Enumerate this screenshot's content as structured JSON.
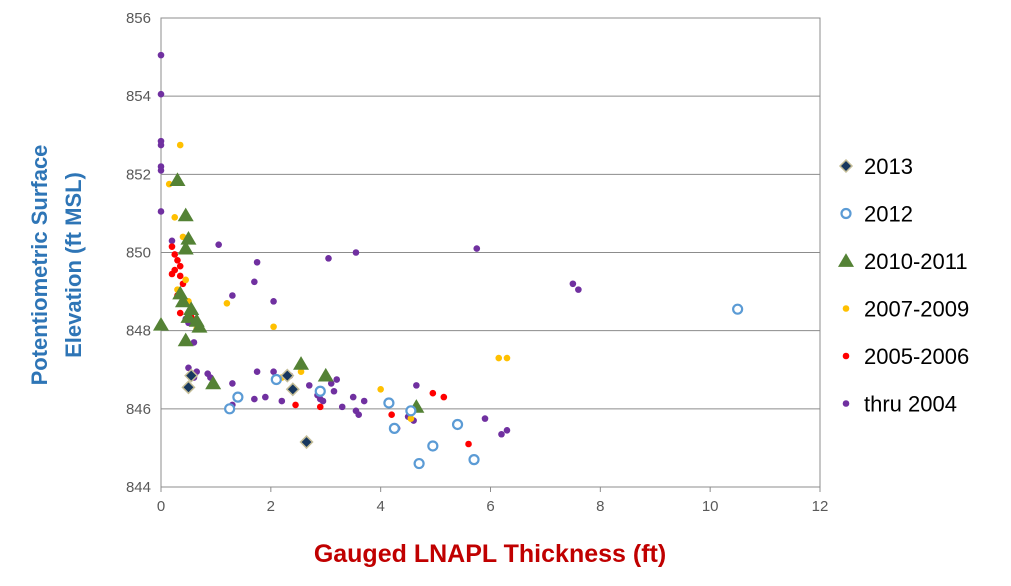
{
  "chart_data": {
    "type": "scatter",
    "title": "",
    "xlabel": "Gauged LNAPL Thickness (ft)",
    "ylabel_lines": [
      "Potentiometric Surface",
      "Elevation (ft MSL)"
    ],
    "xlim": [
      0,
      12
    ],
    "ylim": [
      844,
      856
    ],
    "xticks": [
      "0",
      "2",
      "4",
      "6",
      "8",
      "10",
      "12"
    ],
    "yticks": [
      "844",
      "846",
      "848",
      "850",
      "852",
      "854",
      "856"
    ],
    "grid": "horizontal",
    "legend_position": "right",
    "colors": {
      "xlabel": "#C00000",
      "ylabel": "#2E75B6",
      "grid": "#8c8c8c"
    },
    "series": [
      {
        "name": "2013",
        "marker": "diamond",
        "color": "#17375E",
        "edge": "#C4BD97",
        "points": [
          [
            0.5,
            846.55
          ],
          [
            0.55,
            846.85
          ],
          [
            2.3,
            846.85
          ],
          [
            2.4,
            846.5
          ],
          [
            2.65,
            845.15
          ]
        ]
      },
      {
        "name": "2012",
        "marker": "open-circle",
        "color": "#5B9BD5",
        "points": [
          [
            1.25,
            846.0
          ],
          [
            1.4,
            846.3
          ],
          [
            2.1,
            846.75
          ],
          [
            2.9,
            846.45
          ],
          [
            4.15,
            846.15
          ],
          [
            4.25,
            845.5
          ],
          [
            4.55,
            845.95
          ],
          [
            4.7,
            844.6
          ],
          [
            4.95,
            845.05
          ],
          [
            5.4,
            845.6
          ],
          [
            5.7,
            844.7
          ],
          [
            10.5,
            848.55
          ]
        ]
      },
      {
        "name": "2010-2011",
        "marker": "triangle",
        "color": "#548235",
        "points": [
          [
            0.0,
            848.15
          ],
          [
            0.3,
            851.85
          ],
          [
            0.45,
            850.95
          ],
          [
            0.5,
            850.35
          ],
          [
            0.45,
            850.1
          ],
          [
            0.35,
            848.95
          ],
          [
            0.4,
            848.75
          ],
          [
            0.55,
            848.55
          ],
          [
            0.65,
            848.25
          ],
          [
            0.7,
            848.1
          ],
          [
            0.5,
            848.35
          ],
          [
            0.45,
            847.75
          ],
          [
            0.95,
            846.65
          ],
          [
            2.55,
            847.15
          ],
          [
            3.0,
            846.85
          ],
          [
            4.65,
            846.05
          ]
        ]
      },
      {
        "name": "2007-2009",
        "marker": "circle",
        "color": "#FFC000",
        "points": [
          [
            0.35,
            852.75
          ],
          [
            0.15,
            851.75
          ],
          [
            0.25,
            850.9
          ],
          [
            0.4,
            850.4
          ],
          [
            0.45,
            849.3
          ],
          [
            0.3,
            849.05
          ],
          [
            0.5,
            848.75
          ],
          [
            0.55,
            848.5
          ],
          [
            0.65,
            848.05
          ],
          [
            1.2,
            848.7
          ],
          [
            2.05,
            848.1
          ],
          [
            2.2,
            846.8
          ],
          [
            2.55,
            846.95
          ],
          [
            4.0,
            846.5
          ],
          [
            4.55,
            845.75
          ],
          [
            6.15,
            847.3
          ],
          [
            6.3,
            847.3
          ]
        ]
      },
      {
        "name": "2005-2006",
        "marker": "circle",
        "color": "#FF0000",
        "points": [
          [
            0.2,
            850.15
          ],
          [
            0.25,
            849.95
          ],
          [
            0.3,
            849.8
          ],
          [
            0.35,
            849.65
          ],
          [
            0.25,
            849.55
          ],
          [
            0.2,
            849.45
          ],
          [
            0.35,
            849.4
          ],
          [
            0.4,
            849.2
          ],
          [
            0.3,
            848.9
          ],
          [
            0.35,
            848.45
          ],
          [
            0.55,
            848.35
          ],
          [
            2.45,
            846.1
          ],
          [
            2.9,
            846.05
          ],
          [
            4.2,
            845.85
          ],
          [
            4.95,
            846.4
          ],
          [
            5.15,
            846.3
          ],
          [
            5.6,
            845.1
          ]
        ]
      },
      {
        "name": "thru 2004",
        "marker": "circle",
        "color": "#7030A0",
        "points": [
          [
            0.0,
            855.05
          ],
          [
            0.0,
            854.05
          ],
          [
            0.0,
            852.85
          ],
          [
            0.0,
            852.75
          ],
          [
            0.0,
            852.2
          ],
          [
            0.0,
            852.1
          ],
          [
            0.0,
            851.05
          ],
          [
            0.2,
            850.3
          ],
          [
            1.05,
            850.2
          ],
          [
            3.55,
            850.0
          ],
          [
            3.05,
            849.85
          ],
          [
            5.75,
            850.1
          ],
          [
            1.75,
            849.75
          ],
          [
            1.7,
            849.25
          ],
          [
            7.5,
            849.2
          ],
          [
            7.6,
            849.05
          ],
          [
            1.3,
            848.9
          ],
          [
            2.05,
            848.75
          ],
          [
            0.45,
            848.3
          ],
          [
            0.5,
            848.2
          ],
          [
            0.6,
            847.7
          ],
          [
            0.5,
            847.05
          ],
          [
            0.65,
            846.95
          ],
          [
            0.6,
            846.8
          ],
          [
            0.85,
            846.9
          ],
          [
            0.9,
            846.8
          ],
          [
            1.3,
            846.65
          ],
          [
            1.3,
            846.1
          ],
          [
            1.75,
            846.95
          ],
          [
            1.7,
            846.25
          ],
          [
            1.9,
            846.3
          ],
          [
            2.05,
            846.95
          ],
          [
            2.2,
            846.2
          ],
          [
            2.35,
            846.85
          ],
          [
            2.7,
            846.6
          ],
          [
            2.85,
            846.35
          ],
          [
            2.9,
            846.25
          ],
          [
            2.95,
            846.2
          ],
          [
            3.1,
            846.65
          ],
          [
            3.15,
            846.45
          ],
          [
            3.2,
            846.75
          ],
          [
            3.3,
            846.05
          ],
          [
            3.5,
            846.3
          ],
          [
            3.55,
            845.95
          ],
          [
            3.6,
            845.85
          ],
          [
            3.7,
            846.2
          ],
          [
            4.3,
            845.5
          ],
          [
            4.5,
            845.8
          ],
          [
            4.6,
            845.7
          ],
          [
            4.65,
            846.6
          ],
          [
            5.9,
            845.75
          ],
          [
            6.2,
            845.35
          ],
          [
            6.3,
            845.45
          ]
        ]
      }
    ]
  }
}
